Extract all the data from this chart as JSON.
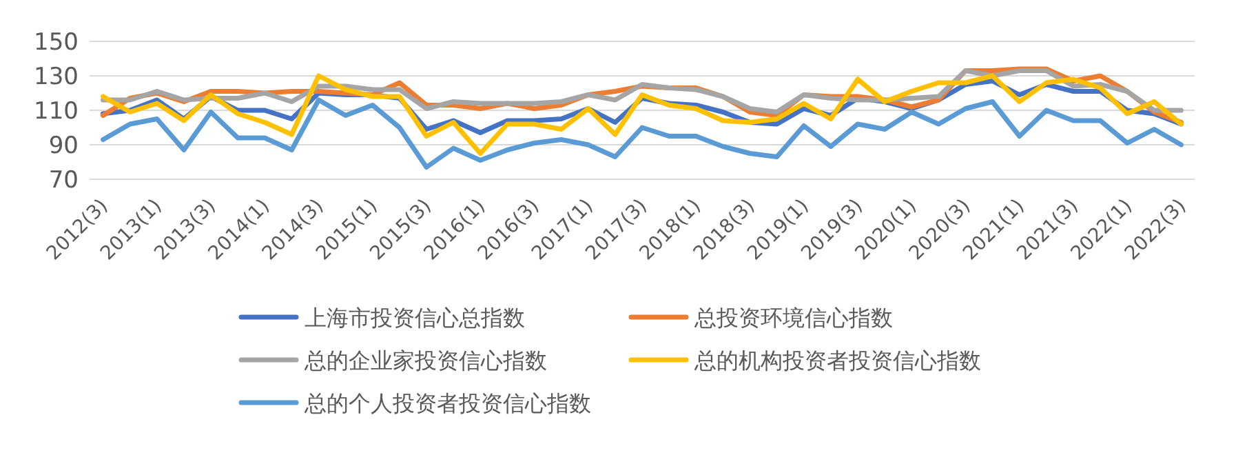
{
  "chart_data": {
    "type": "line",
    "categories": [
      "2012(3)",
      null,
      "2013(1)",
      null,
      "2013(3)",
      null,
      "2014(1)",
      null,
      "2014(3)",
      null,
      "2015(1)",
      null,
      "2015(3)",
      null,
      "2016(1)",
      null,
      "2016(3)",
      null,
      "2017(1)",
      null,
      "2017(3)",
      null,
      "2018(1)",
      null,
      "2018(3)",
      null,
      "2019(1)",
      null,
      "2019(3)",
      null,
      "2020(1)",
      null,
      "2020(3)",
      null,
      "2021(1)",
      null,
      "2021(3)",
      null,
      "2022(1)",
      null,
      "2022(3)"
    ],
    "ylim": [
      70,
      150
    ],
    "yticks": [
      70,
      90,
      110,
      130,
      150
    ],
    "grid": "y",
    "legend": "bottom",
    "marker": "none",
    "line_style": "solid",
    "series": [
      {
        "name": "上海市投资信心总指数",
        "color": "#4472c4",
        "values": [
          108,
          110,
          116,
          105,
          118,
          110,
          110,
          105,
          120,
          119,
          119,
          117,
          99,
          104,
          97,
          104,
          104,
          105,
          111,
          103,
          117,
          114,
          113,
          109,
          103,
          102,
          111,
          107,
          117,
          115,
          111,
          116,
          125,
          127,
          119,
          125,
          121,
          121,
          110,
          108,
          102
        ]
      },
      {
        "name": "总投资环境信心指数",
        "color": "#ed7d31",
        "values": [
          107,
          117,
          120,
          115,
          121,
          121,
          120,
          121,
          121,
          120,
          119,
          126,
          113,
          113,
          111,
          114,
          111,
          113,
          119,
          121,
          124,
          123,
          123,
          118,
          109,
          107,
          119,
          118,
          118,
          116,
          112,
          116,
          133,
          133,
          134,
          134,
          127,
          130,
          121,
          109,
          103
        ]
      },
      {
        "name": "总的企业家投资信心指数",
        "color": "#a5a5a5",
        "values": [
          116,
          116,
          121,
          116,
          117,
          117,
          120,
          115,
          124,
          124,
          122,
          122,
          111,
          115,
          114,
          114,
          114,
          115,
          119,
          116,
          125,
          123,
          122,
          118,
          111,
          109,
          119,
          117,
          116,
          116,
          117,
          118,
          133,
          130,
          133,
          133,
          124,
          125,
          121,
          110,
          110
        ]
      },
      {
        "name": "总的机构投资者投资信心指数",
        "color": "#ffc000",
        "values": [
          118,
          109,
          114,
          104,
          119,
          108,
          103,
          96,
          130,
          122,
          118,
          118,
          95,
          103,
          85,
          102,
          102,
          99,
          111,
          96,
          119,
          113,
          111,
          104,
          103,
          105,
          114,
          105,
          128,
          115,
          121,
          126,
          126,
          130,
          115,
          126,
          128,
          123,
          108,
          115,
          102
        ]
      },
      {
        "name": "总的个人投资者投资信心指数",
        "color": "#5b9bd5",
        "values": [
          93,
          102,
          105,
          87,
          109,
          94,
          94,
          87,
          116,
          107,
          113,
          100,
          77,
          88,
          81,
          87,
          91,
          93,
          90,
          83,
          100,
          95,
          95,
          89,
          85,
          83,
          101,
          89,
          102,
          99,
          109,
          102,
          111,
          115,
          95,
          110,
          104,
          104,
          91,
          99,
          90
        ]
      }
    ]
  }
}
